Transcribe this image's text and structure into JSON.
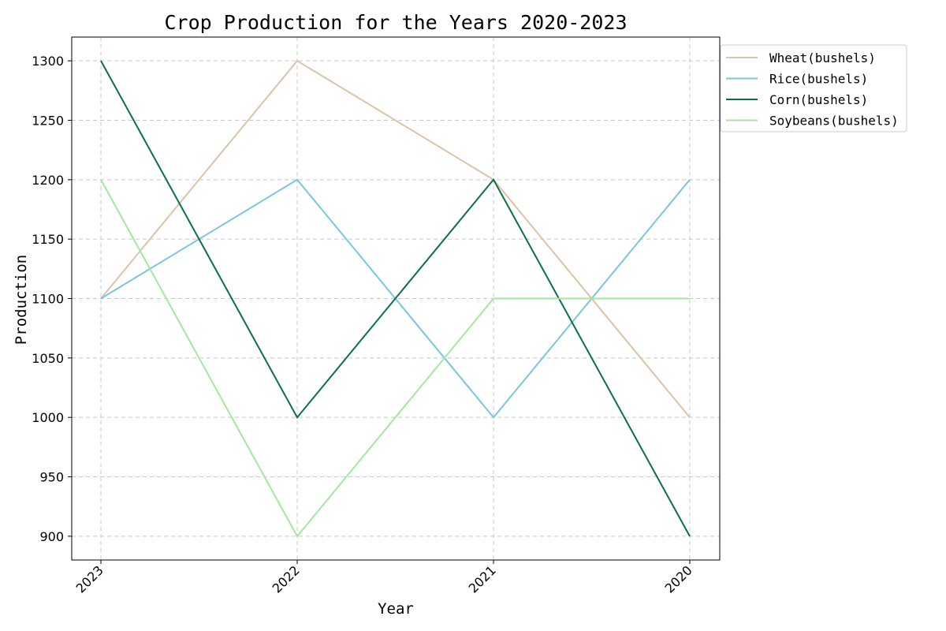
{
  "chart_data": {
    "type": "line",
    "title": "Crop Production for the Years 2020-2023",
    "xlabel": "Year",
    "ylabel": "Production",
    "categories": [
      "2023",
      "2022",
      "2021",
      "2020"
    ],
    "ylim": [
      880,
      1320
    ],
    "yticks": [
      900,
      950,
      1000,
      1050,
      1100,
      1150,
      1200,
      1250,
      1300
    ],
    "grid": true,
    "legend_position": "outside-top-right",
    "series": [
      {
        "name": "Wheat(bushels)",
        "values": [
          1100,
          1300,
          1200,
          1000
        ],
        "color": "#dcc3a7"
      },
      {
        "name": "Rice(bushels)",
        "values": [
          1100,
          1200,
          1000,
          1200
        ],
        "color": "#7ac6dc"
      },
      {
        "name": "Corn(bushels)",
        "values": [
          1300,
          1000,
          1200,
          900
        ],
        "color": "#0b7049"
      },
      {
        "name": "Soybeans(bushels)",
        "values": [
          1200,
          900,
          1100,
          1100
        ],
        "color": "#a5e6a0"
      }
    ]
  }
}
